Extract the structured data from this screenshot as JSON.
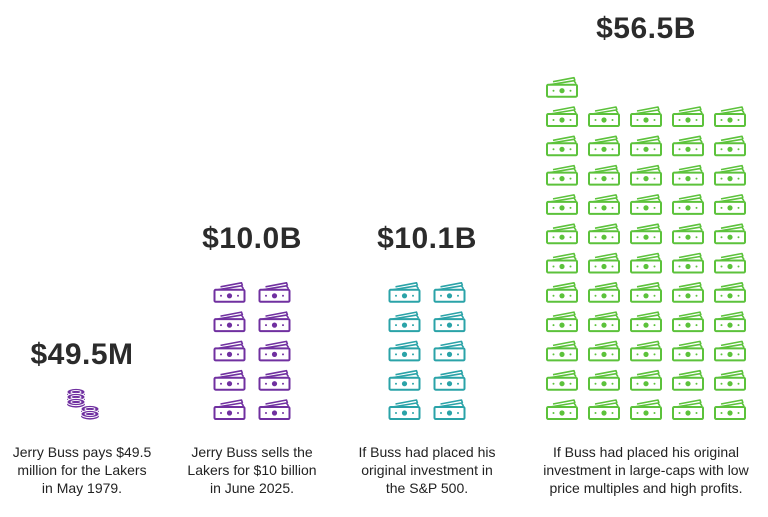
{
  "chart_data": {
    "type": "bar",
    "unit": "pictograph (stacked icons)",
    "categories": [
      "Jerry Buss pays $49.5 million for the Lakers in May 1979.",
      "Jerry Buss sells the Lakers for $10 billion in June 2025.",
      "If Buss had placed his original investment in the S&P 500.",
      "If Buss had placed his original investment in large-caps with low price multiples and high profits."
    ],
    "values_usd": [
      49500000,
      10000000000,
      10100000000,
      56500000000
    ],
    "series": [
      {
        "value": 49500000,
        "value_label": "$49.5M",
        "icon": "coins-icon",
        "icon_count": 1,
        "color": "#7030a0"
      },
      {
        "value": 10000000000,
        "value_label": "$10.0B",
        "icon": "banknote-icon",
        "icon_count": 10,
        "color": "#7030a0"
      },
      {
        "value": 10100000000,
        "value_label": "$10.1B",
        "icon": "banknote-icon",
        "icon_count": 10,
        "color": "#2aa3a8"
      },
      {
        "value": 56500000000,
        "value_label": "$56.5B",
        "icon": "banknote-icon",
        "icon_count": 56,
        "color": "#5cc23b"
      }
    ],
    "captions": [
      [
        "Jerry Buss pays $49.5",
        "million for the Lakers",
        "in May 1979."
      ],
      [
        "Jerry Buss sells the",
        "Lakers for $10 billion",
        "in June 2025."
      ],
      [
        "If Buss had placed his",
        "original investment in",
        "the S&P 500."
      ],
      [
        "If Buss had placed his original",
        "investment in large-caps with low",
        "price multiples and high profits."
      ]
    ]
  }
}
